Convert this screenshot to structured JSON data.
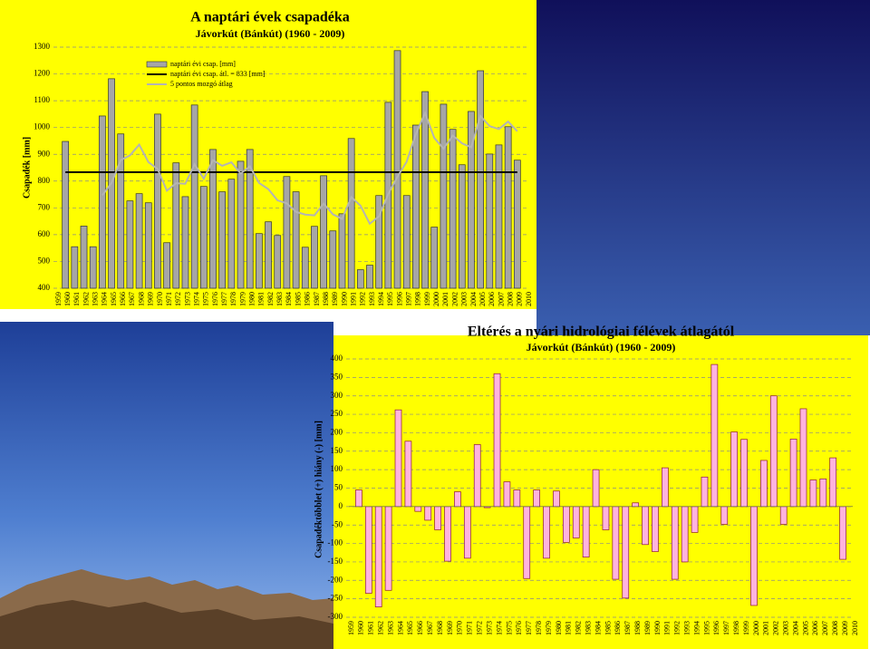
{
  "chart_data": [
    {
      "type": "bar",
      "title": "A naptári évek csapadéka",
      "subtitle": "Jávorkút (Bánkút) (1960 - 2009)",
      "ylabel": "Csapadék [mm]",
      "categories": [
        "1959",
        "1960",
        "1961",
        "1962",
        "1963",
        "1964",
        "1965",
        "1966",
        "1967",
        "1968",
        "1969",
        "1970",
        "1971",
        "1972",
        "1973",
        "1974",
        "1975",
        "1976",
        "1977",
        "1978",
        "1979",
        "1980",
        "1981",
        "1982",
        "1983",
        "1984",
        "1985",
        "1986",
        "1987",
        "1988",
        "1989",
        "1990",
        "1991",
        "1992",
        "1993",
        "1994",
        "1995",
        "1996",
        "1997",
        "1998",
        "1999",
        "2000",
        "2001",
        "2002",
        "2003",
        "2004",
        "2005",
        "2006",
        "2007",
        "2008",
        "2009",
        "2010"
      ],
      "series": [
        {
          "name": "naptári évi csap. [mm]",
          "color": "#a6a6a6",
          "values": [
            null,
            948,
            555,
            632,
            555,
            1043,
            1182,
            976,
            726,
            753,
            719,
            1050,
            570,
            868,
            742,
            1084,
            780,
            918,
            760,
            807,
            874,
            918,
            604,
            648,
            597,
            817,
            760,
            553,
            631,
            820,
            614,
            678,
            959,
            469,
            486,
            746,
            1094,
            1287,
            746,
            1009,
            1134,
            628,
            1087,
            993,
            861,
            1060,
            1212,
            901,
            935,
            1003,
            878,
            null
          ]
        },
        {
          "name": "5 pontos mozgó átlag",
          "type": "line",
          "color": "#b4b4b4",
          "values": [
            null,
            null,
            null,
            null,
            null,
            747,
            793,
            878,
            896,
            936,
            871,
            845,
            764,
            792,
            790,
            863,
            809,
            878,
            857,
            870,
            828,
            855,
            793,
            770,
            728,
            717,
            685,
            675,
            672,
            716,
            676,
            659,
            740,
            708,
            641,
            668,
            751,
            816,
            872,
            976,
            1054,
            961,
            921,
            970,
            941,
            926,
            1043,
            1005,
            994,
            1022,
            986,
            null
          ]
        }
      ],
      "mean_line": {
        "name": "naptári évi csap. átl. = 833 [mm]",
        "value": 833,
        "color": "#000000"
      },
      "ylim": [
        400,
        1300
      ],
      "yticks": [
        400,
        500,
        600,
        700,
        800,
        900,
        1000,
        1100,
        1200,
        1300
      ],
      "grid": true,
      "legend": "top-left"
    },
    {
      "type": "bar",
      "title": "Eltérés a nyári hidrológiai félévek átlagától",
      "subtitle": "Jávorkút (Bánkút) (1960 - 2009)",
      "ylabel": "Csapadéktöbblet (+) hiány (-) [mm]",
      "categories": [
        "1959",
        "1960",
        "1961",
        "1962",
        "1963",
        "1964",
        "1965",
        "1966",
        "1967",
        "1968",
        "1969",
        "1970",
        "1971",
        "1972",
        "1973",
        "1974",
        "1975",
        "1976",
        "1977",
        "1978",
        "1979",
        "1980",
        "1981",
        "1982",
        "1983",
        "1984",
        "1985",
        "1986",
        "1987",
        "1988",
        "1989",
        "1990",
        "1991",
        "1992",
        "1993",
        "1994",
        "1995",
        "1996",
        "1997",
        "1998",
        "1999",
        "2000",
        "2001",
        "2002",
        "2003",
        "2004",
        "2005",
        "2006",
        "2007",
        "2008",
        "2009",
        "2010"
      ],
      "values": [
        null,
        45,
        -235,
        -272,
        -227,
        262,
        177,
        -13,
        -37,
        -63,
        -148,
        40,
        -140,
        168,
        -3,
        360,
        67,
        45,
        -195,
        45,
        -140,
        42,
        -97,
        -85,
        -137,
        100,
        -63,
        -197,
        -248,
        10,
        -103,
        -122,
        105,
        -197,
        -150,
        -70,
        80,
        385,
        -48,
        202,
        182,
        -268,
        125,
        300,
        -48,
        183,
        265,
        72,
        75,
        132,
        -143,
        null
      ],
      "color": "#ffb3de",
      "ylim": [
        -300,
        400
      ],
      "yticks": [
        -300,
        -250,
        -200,
        -150,
        -100,
        -50,
        0,
        50,
        100,
        150,
        200,
        250,
        300,
        350,
        400
      ],
      "grid": true
    }
  ]
}
